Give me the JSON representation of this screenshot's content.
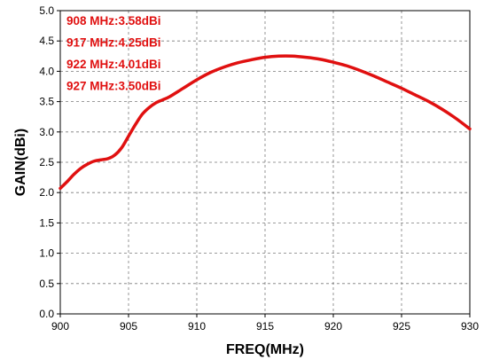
{
  "chart_data": {
    "type": "line",
    "xlabel": "FREQ(MHz)",
    "ylabel": "GAIN(dBi)",
    "xlim": [
      900,
      930
    ],
    "ylim": [
      0.0,
      5.0
    ],
    "x_ticks": [
      "900",
      "905",
      "910",
      "915",
      "920",
      "925",
      "930"
    ],
    "y_ticks": [
      "0.0",
      "0.5",
      "1.0",
      "1.5",
      "2.0",
      "2.5",
      "3.0",
      "3.5",
      "4.0",
      "4.5",
      "5.0"
    ],
    "grid": true,
    "line_color": "#e01010",
    "annotations": [
      "908 MHz:3.58dBi",
      "917 MHz:4.25dBi",
      "922 MHz:4.01dBi",
      "927 MHz:3.50dBi"
    ],
    "series": [
      {
        "x": [
          900,
          900.5,
          901,
          901.5,
          902,
          902.5,
          903,
          903.5,
          904,
          904.5,
          905,
          905.5,
          906,
          906.5,
          907,
          907.5,
          908,
          909,
          910,
          911,
          912,
          913,
          914,
          915,
          916,
          917,
          918,
          919,
          920,
          921,
          922,
          923,
          924,
          925,
          926,
          927,
          928,
          929,
          930
        ],
        "y": [
          2.07,
          2.18,
          2.3,
          2.4,
          2.47,
          2.52,
          2.54,
          2.56,
          2.62,
          2.74,
          2.93,
          3.12,
          3.29,
          3.4,
          3.48,
          3.53,
          3.58,
          3.72,
          3.86,
          3.98,
          4.07,
          4.14,
          4.19,
          4.23,
          4.25,
          4.25,
          4.23,
          4.2,
          4.15,
          4.09,
          4.01,
          3.92,
          3.82,
          3.72,
          3.61,
          3.5,
          3.37,
          3.22,
          3.05
        ]
      }
    ]
  }
}
